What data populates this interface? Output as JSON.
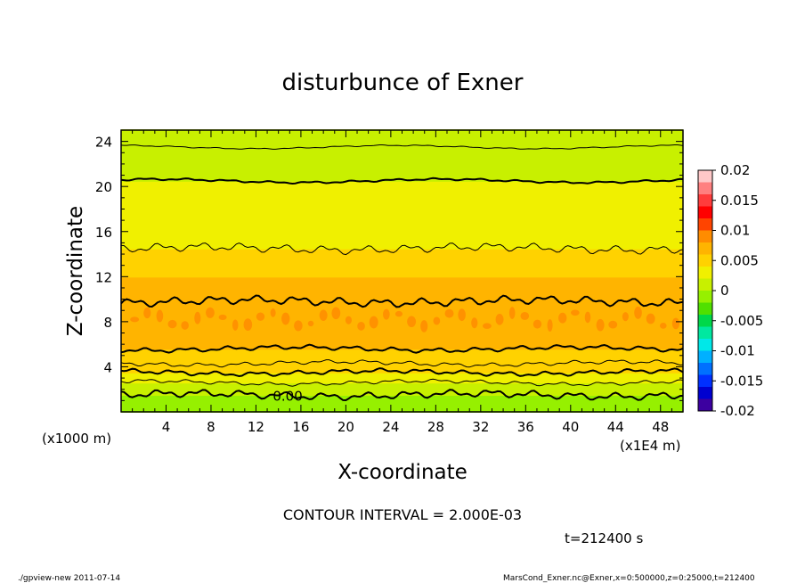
{
  "chart_data": {
    "type": "heatmap",
    "title": "disturbunce of Exner",
    "xlabel": "X-coordinate",
    "ylabel": "Z-coordinate",
    "x_unit_left": "(x1000 m)",
    "x_unit_right": "(x1E4 m)",
    "xlim": [
      0,
      50
    ],
    "ylim": [
      0,
      25
    ],
    "x_ticks": [
      "4",
      "8",
      "12",
      "16",
      "20",
      "24",
      "28",
      "32",
      "36",
      "40",
      "44",
      "48"
    ],
    "x_tick_values": [
      4,
      8,
      12,
      16,
      20,
      24,
      28,
      32,
      36,
      40,
      44,
      48
    ],
    "y_ticks": [
      "4",
      "8",
      "12",
      "16",
      "20",
      "24"
    ],
    "y_tick_values": [
      4,
      8,
      12,
      16,
      20,
      24
    ],
    "colorbar": {
      "labels": [
        "0.02",
        "0.015",
        "0.01",
        "0.005",
        "0",
        "-0.005",
        "-0.01",
        "-0.015",
        "-0.02"
      ],
      "values": [
        0.02,
        0.015,
        0.01,
        0.005,
        0,
        -0.005,
        -0.01,
        -0.015,
        -0.02
      ],
      "range": [
        -0.02,
        0.02
      ],
      "colors": [
        "#ffc8c8",
        "#ff8080",
        "#ff3c3c",
        "#ff0000",
        "#ff4400",
        "#ff8c00",
        "#ffb400",
        "#ffd200",
        "#f0f000",
        "#c8f000",
        "#96f000",
        "#50e000",
        "#00d84a",
        "#00e8a0",
        "#00e8e8",
        "#00b0ff",
        "#0070ff",
        "#0030ff",
        "#0000d0",
        "#3c00a0"
      ]
    },
    "bands": [
      {
        "z_from": 0,
        "z_to": 1.5,
        "value": -0.001
      },
      {
        "z_from": 1.5,
        "z_to": 2.6,
        "value": 0.0015
      },
      {
        "z_from": 2.6,
        "z_to": 3.5,
        "value": 0.003
      },
      {
        "z_from": 3.5,
        "z_to": 4.5,
        "value": 0.0045
      },
      {
        "z_from": 4.5,
        "z_to": 5.6,
        "value": 0.006
      },
      {
        "z_from": 5.6,
        "z_to": 7.0,
        "value": 0.007
      },
      {
        "z_from": 7.0,
        "z_to": 10.0,
        "value": 0.008
      },
      {
        "z_from": 10.0,
        "z_to": 12.0,
        "value": 0.0065
      },
      {
        "z_from": 12.0,
        "z_to": 14.5,
        "value": 0.005
      },
      {
        "z_from": 14.5,
        "z_to": 17.0,
        "value": 0.0035
      },
      {
        "z_from": 17.0,
        "z_to": 20.5,
        "value": 0.0025
      },
      {
        "z_from": 20.5,
        "z_to": 23.5,
        "value": 0.0015
      },
      {
        "z_from": 23.5,
        "z_to": 25.0,
        "value": 0.0005
      }
    ],
    "contours": [
      {
        "z": 1.5,
        "amp": 0.35,
        "bold": true
      },
      {
        "z": 2.6,
        "amp": 0.18,
        "bold": false
      },
      {
        "z": 3.5,
        "amp": 0.22,
        "bold": true
      },
      {
        "z": 4.3,
        "amp": 0.2,
        "bold": false
      },
      {
        "z": 5.6,
        "amp": 0.22,
        "bold": true
      },
      {
        "z": 9.8,
        "amp": 0.4,
        "bold": true
      },
      {
        "z": 14.5,
        "amp": 0.4,
        "bold": false
      },
      {
        "z": 20.5,
        "amp": 0.1,
        "bold": true
      },
      {
        "z": 23.5,
        "amp": 0.06,
        "bold": false
      }
    ],
    "contour_label": "0.00",
    "contour_label_x": 13.5,
    "contour_label_z": 1.4
  },
  "contour_interval_text": "CONTOUR INTERVAL = 2.000E-03",
  "time_text": "t=212400 s",
  "footer_left": "./gpview-new  2011-07-14",
  "footer_right": "MarsCond_Exner.nc@Exner,x=0:500000,z=0:25000,t=212400"
}
